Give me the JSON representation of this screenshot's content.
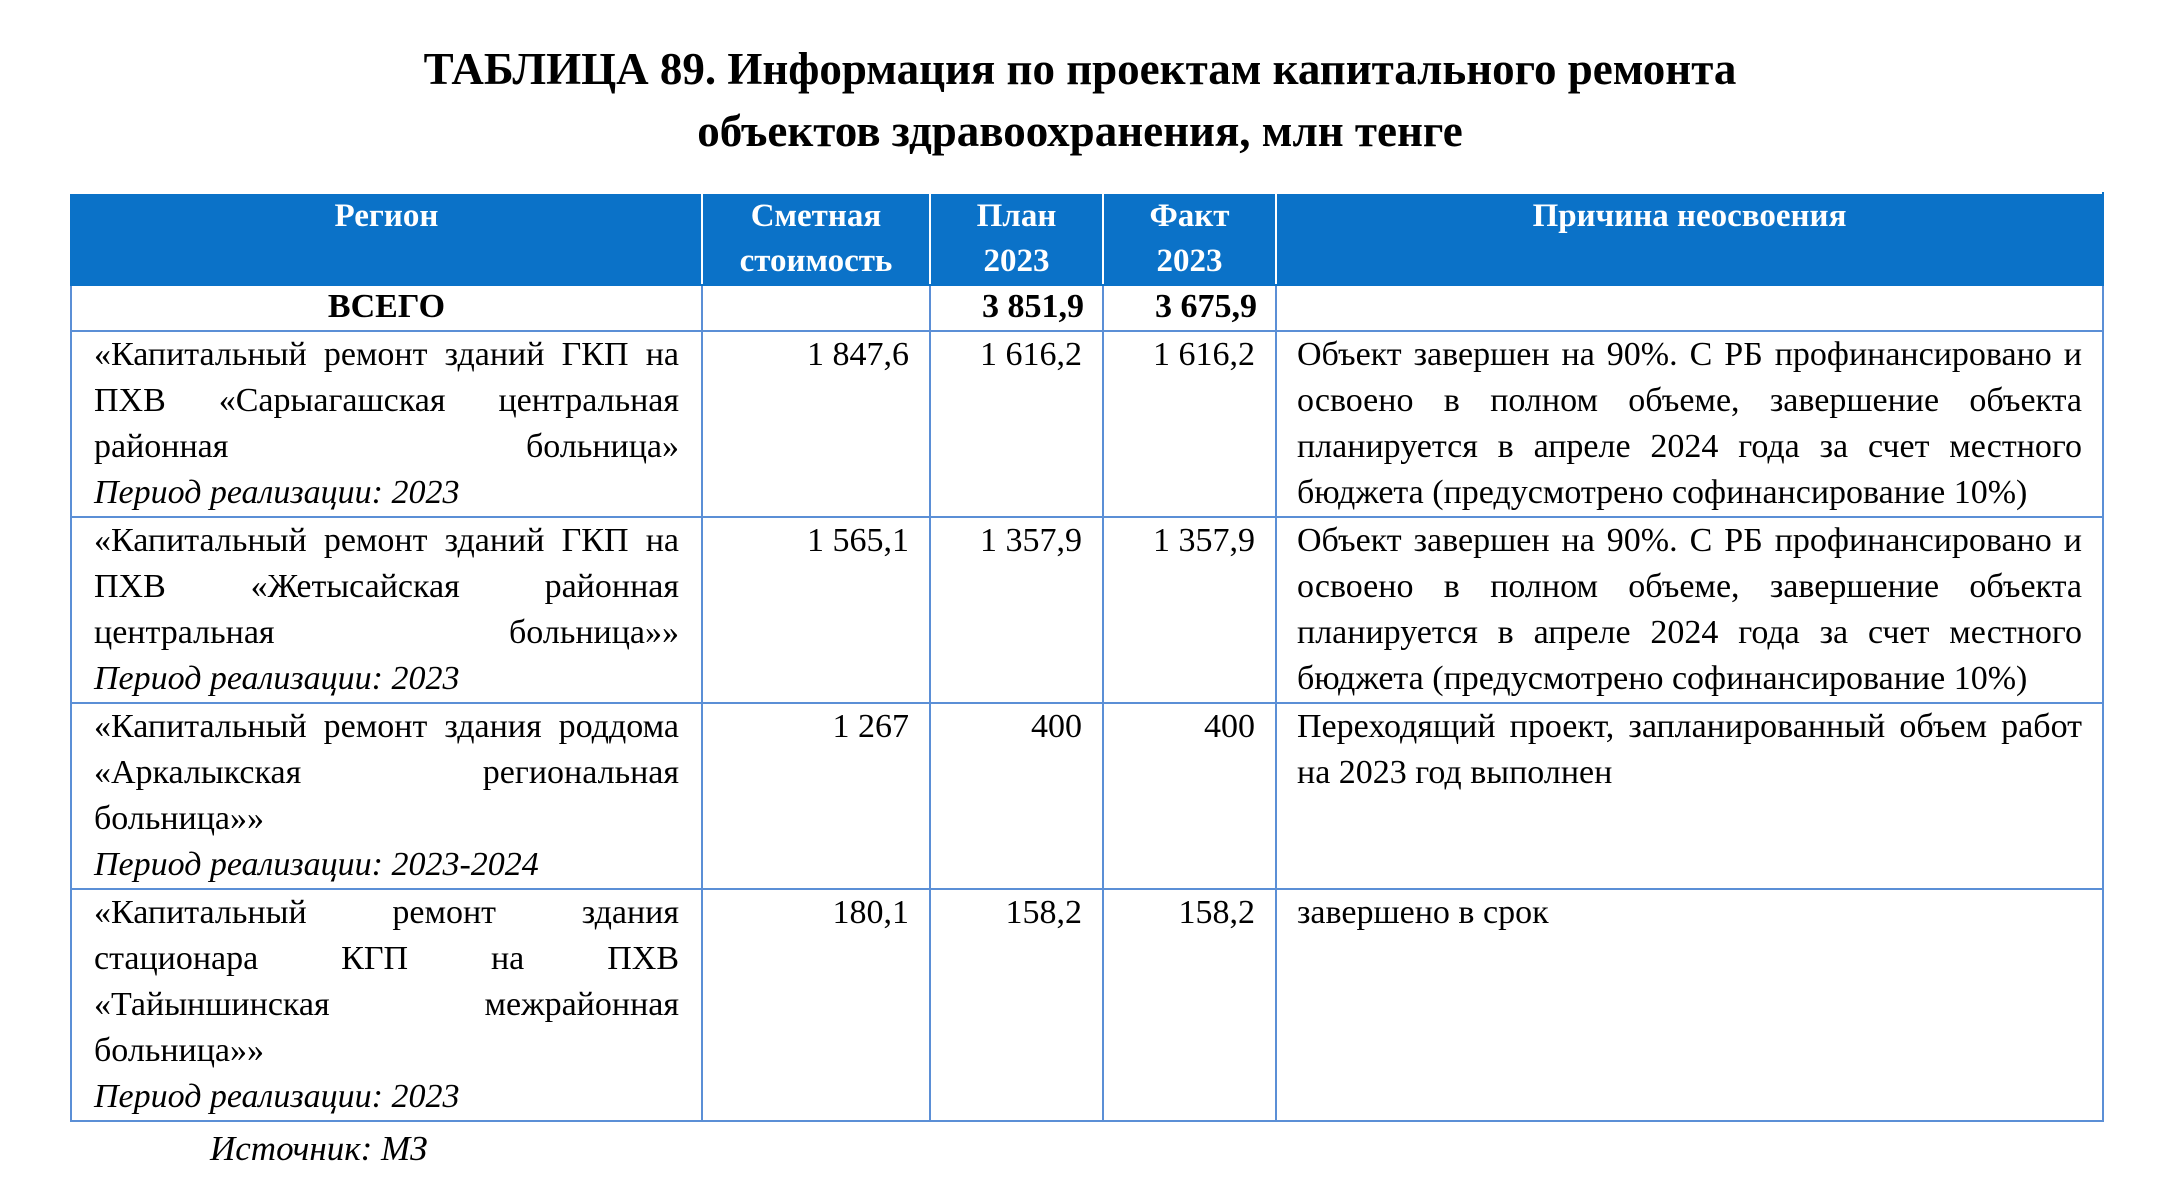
{
  "title": {
    "line1": "ТАБЛИЦА 89. Информация по проектам капитального ремонта",
    "line2": "объектов здравоохранения,  млн тенге"
  },
  "table": {
    "headers": {
      "region": "Регион",
      "cost_line1": "Сметная",
      "cost_line2": "стоимость",
      "plan_line1": "План",
      "plan_line2": "2023",
      "fact_line1": "Факт",
      "fact_line2": "2023",
      "reason": "Причина неосвоения"
    },
    "total": {
      "label": "ВСЕГО",
      "cost": "",
      "plan": "3 851,9",
      "fact": "3 675,9",
      "reason": ""
    },
    "rows": [
      {
        "region": "«Капитальный ремонт зданий ГКП на ПХВ «Сарыагашская центральная районная больница»",
        "period": "Период реализации: 2023",
        "cost": "1 847,6",
        "plan": "1 616,2",
        "fact": "1 616,2",
        "reason": "Объект завершен на 90%. С РБ профинансировано и освоено в полном объеме, завершение объекта планируется в апреле 2024 года за счет местного бюджета (предусмотрено софинансирование 10%)"
      },
      {
        "region": "«Капитальный ремонт зданий ГКП на ПХВ «Жетысайская районная центральная больница»»",
        "period": "Период реализации: 2023",
        "cost": "1 565,1",
        "plan": "1 357,9",
        "fact": "1 357,9",
        "reason": "Объект завершен на 90%. С РБ профинансировано и освоено в полном объеме, завершение объекта планируется в апреле 2024 года за счет местного бюджета (предусмотрено софинансирование 10%)"
      },
      {
        "region": "«Капитальный ремонт здания роддома «Аркалыкская региональная больница»»",
        "period": "Период реализации: 2023-2024",
        "cost": "1 267",
        "plan": "400",
        "fact": "400",
        "reason": "Переходящий проект, запланированный объем работ на 2023 год выполнен"
      },
      {
        "region": "«Капитальный ремонт здания стационара КГП на ПХВ «Тайыншинская межрайонная больница»»",
        "period": "Период реализации: 2023",
        "cost": "180,1",
        "plan": "158,2",
        "fact": "158,2",
        "reason": "завершено в срок"
      }
    ]
  },
  "source": "Источник: МЗ",
  "colors": {
    "header_bg": "#0b72c8",
    "header_text": "#ffffff",
    "border": "#5b8fd6"
  }
}
